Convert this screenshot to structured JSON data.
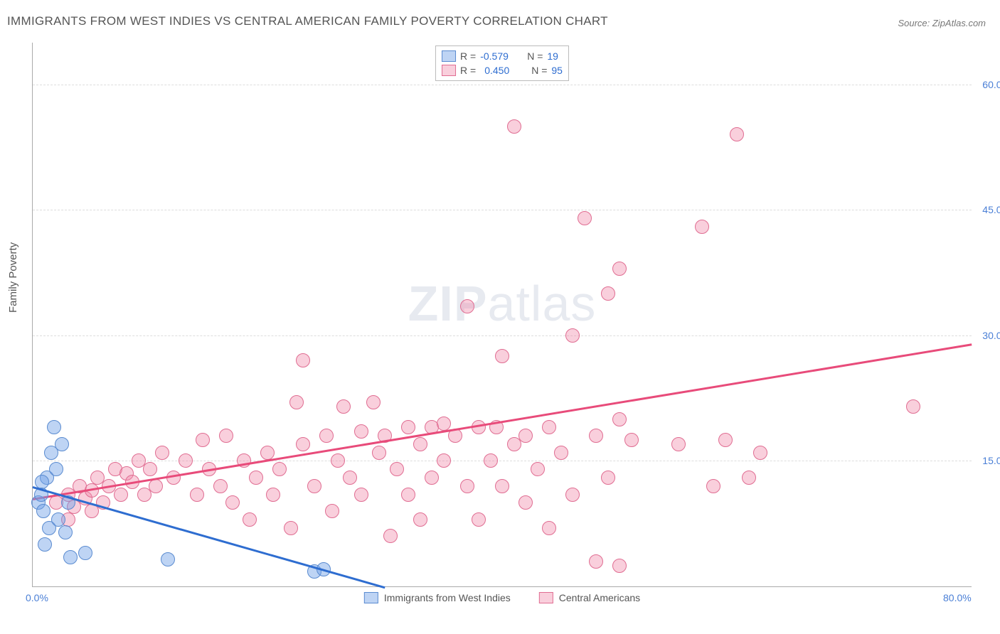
{
  "title": "IMMIGRANTS FROM WEST INDIES VS CENTRAL AMERICAN FAMILY POVERTY CORRELATION CHART",
  "source": "Source: ZipAtlas.com",
  "watermark_zip": "ZIP",
  "watermark_atlas": "atlas",
  "y_axis_title": "Family Poverty",
  "chart": {
    "type": "scatter",
    "background_color": "#ffffff",
    "grid_color": "#dddddd",
    "axis_color": "#aaaaaa",
    "tick_label_color": "#4a7fd6",
    "tick_fontsize": 14,
    "title_fontsize": 17,
    "xlim": [
      0,
      80
    ],
    "ylim": [
      0,
      65
    ],
    "y_ticks": [
      15,
      30,
      45,
      60
    ],
    "x_ticks": [
      {
        "value": 0,
        "label": "0.0%"
      },
      {
        "value": 80,
        "label": "80.0%"
      }
    ],
    "marker_radius": 9,
    "marker_opacity": 0.55,
    "line_width": 2.5
  },
  "series": {
    "blue": {
      "label": "Immigrants from West Indies",
      "color": "#6fa0e6",
      "fill": "rgba(111,160,230,0.45)",
      "stroke": "#5a8bd0",
      "line_color": "#2e6dd0",
      "R_label": "R = ",
      "R_value": "-0.579",
      "N_label": "N = ",
      "N_value": "19",
      "trend": {
        "x1": 0,
        "y1": 12,
        "x2": 30,
        "y2": 0
      },
      "points": [
        {
          "x": 0.5,
          "y": 10
        },
        {
          "x": 0.7,
          "y": 11
        },
        {
          "x": 0.9,
          "y": 9
        },
        {
          "x": 1.2,
          "y": 13
        },
        {
          "x": 1.4,
          "y": 7
        },
        {
          "x": 1.6,
          "y": 16
        },
        {
          "x": 1.8,
          "y": 19
        },
        {
          "x": 2.0,
          "y": 14
        },
        {
          "x": 2.2,
          "y": 8
        },
        {
          "x": 2.5,
          "y": 17
        },
        {
          "x": 2.8,
          "y": 6.5
        },
        {
          "x": 3.0,
          "y": 10
        },
        {
          "x": 3.2,
          "y": 3.5
        },
        {
          "x": 4.5,
          "y": 4.0
        },
        {
          "x": 1.0,
          "y": 5
        },
        {
          "x": 11.5,
          "y": 3.2
        },
        {
          "x": 24.0,
          "y": 1.8
        },
        {
          "x": 24.8,
          "y": 2.0
        },
        {
          "x": 0.8,
          "y": 12.5
        }
      ]
    },
    "pink": {
      "label": "Central Americans",
      "color": "#f087a8",
      "fill": "rgba(240,135,168,0.40)",
      "stroke": "#e06d92",
      "line_color": "#e84b7a",
      "R_label": "R = ",
      "R_value": "0.450",
      "N_label": "N = ",
      "N_value": "95",
      "trend": {
        "x1": 0,
        "y1": 10.5,
        "x2": 80,
        "y2": 29
      },
      "points": [
        {
          "x": 2,
          "y": 10
        },
        {
          "x": 3,
          "y": 11
        },
        {
          "x": 3.5,
          "y": 9.5
        },
        {
          "x": 4,
          "y": 12
        },
        {
          "x": 4.5,
          "y": 10.5
        },
        {
          "x": 5,
          "y": 11.5
        },
        {
          "x": 5.5,
          "y": 13
        },
        {
          "x": 6,
          "y": 10
        },
        {
          "x": 6.5,
          "y": 12
        },
        {
          "x": 7,
          "y": 14
        },
        {
          "x": 7.5,
          "y": 11
        },
        {
          "x": 8,
          "y": 13.5
        },
        {
          "x": 8.5,
          "y": 12.5
        },
        {
          "x": 9,
          "y": 15
        },
        {
          "x": 9.5,
          "y": 11
        },
        {
          "x": 10,
          "y": 14
        },
        {
          "x": 10.5,
          "y": 12
        },
        {
          "x": 11,
          "y": 16
        },
        {
          "x": 12,
          "y": 13
        },
        {
          "x": 13,
          "y": 15
        },
        {
          "x": 14,
          "y": 11
        },
        {
          "x": 14.5,
          "y": 17.5
        },
        {
          "x": 15,
          "y": 14
        },
        {
          "x": 16,
          "y": 12
        },
        {
          "x": 16.5,
          "y": 18
        },
        {
          "x": 17,
          "y": 10
        },
        {
          "x": 18,
          "y": 15
        },
        {
          "x": 18.5,
          "y": 8
        },
        {
          "x": 19,
          "y": 13
        },
        {
          "x": 20,
          "y": 16
        },
        {
          "x": 20.5,
          "y": 11
        },
        {
          "x": 21,
          "y": 14
        },
        {
          "x": 22,
          "y": 7
        },
        {
          "x": 22.5,
          "y": 22
        },
        {
          "x": 23,
          "y": 17
        },
        {
          "x": 23,
          "y": 27
        },
        {
          "x": 24,
          "y": 12
        },
        {
          "x": 25,
          "y": 18
        },
        {
          "x": 25.5,
          "y": 9
        },
        {
          "x": 26,
          "y": 15
        },
        {
          "x": 26.5,
          "y": 21.5
        },
        {
          "x": 27,
          "y": 13
        },
        {
          "x": 28,
          "y": 18.5
        },
        {
          "x": 28,
          "y": 11
        },
        {
          "x": 29,
          "y": 22
        },
        {
          "x": 29.5,
          "y": 16
        },
        {
          "x": 30,
          "y": 18
        },
        {
          "x": 30.5,
          "y": 6
        },
        {
          "x": 31,
          "y": 14
        },
        {
          "x": 32,
          "y": 19
        },
        {
          "x": 32,
          "y": 11
        },
        {
          "x": 33,
          "y": 17
        },
        {
          "x": 33,
          "y": 8
        },
        {
          "x": 34,
          "y": 19
        },
        {
          "x": 34,
          "y": 13
        },
        {
          "x": 35,
          "y": 19.5
        },
        {
          "x": 35,
          "y": 15
        },
        {
          "x": 36,
          "y": 18
        },
        {
          "x": 37,
          "y": 33.5
        },
        {
          "x": 37,
          "y": 12
        },
        {
          "x": 38,
          "y": 19
        },
        {
          "x": 38,
          "y": 8
        },
        {
          "x": 39,
          "y": 15
        },
        {
          "x": 39.5,
          "y": 19
        },
        {
          "x": 40,
          "y": 27.5
        },
        {
          "x": 40,
          "y": 12
        },
        {
          "x": 41,
          "y": 55
        },
        {
          "x": 41,
          "y": 17
        },
        {
          "x": 42,
          "y": 10
        },
        {
          "x": 42,
          "y": 18
        },
        {
          "x": 43,
          "y": 14
        },
        {
          "x": 44,
          "y": 19
        },
        {
          "x": 44,
          "y": 7
        },
        {
          "x": 45,
          "y": 16
        },
        {
          "x": 46,
          "y": 30
        },
        {
          "x": 46,
          "y": 11
        },
        {
          "x": 47,
          "y": 44
        },
        {
          "x": 48,
          "y": 18
        },
        {
          "x": 48,
          "y": 3
        },
        {
          "x": 49,
          "y": 35
        },
        {
          "x": 49,
          "y": 13
        },
        {
          "x": 50,
          "y": 38
        },
        {
          "x": 50,
          "y": 20
        },
        {
          "x": 50,
          "y": 2.5
        },
        {
          "x": 51,
          "y": 17.5
        },
        {
          "x": 55,
          "y": 17
        },
        {
          "x": 57,
          "y": 43
        },
        {
          "x": 58,
          "y": 12
        },
        {
          "x": 59,
          "y": 17.5
        },
        {
          "x": 60,
          "y": 54
        },
        {
          "x": 61,
          "y": 13
        },
        {
          "x": 62,
          "y": 16
        },
        {
          "x": 75,
          "y": 21.5
        },
        {
          "x": 3,
          "y": 8
        },
        {
          "x": 5,
          "y": 9
        }
      ]
    }
  }
}
